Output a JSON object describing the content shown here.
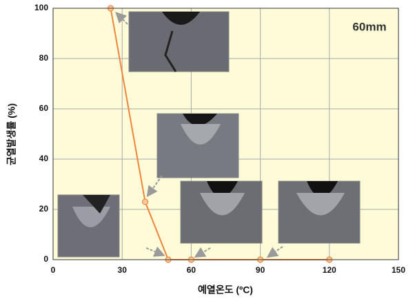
{
  "chart_data": {
    "type": "line",
    "annotation": "60mm",
    "x_label": "예열온도 (ºC)",
    "y_label": "균열발생률 (%)",
    "x": [
      25,
      40,
      50,
      60,
      90,
      120
    ],
    "series": [
      {
        "color": "#f0853a",
        "values": [
          100,
          23,
          0,
          0,
          0,
          0
        ]
      }
    ],
    "xlim": [
      0,
      150
    ],
    "xticks": [
      0,
      30,
      60,
      90,
      120,
      150
    ],
    "ylim": [
      0,
      100
    ],
    "yticks": [
      0,
      20,
      40,
      60,
      80,
      100
    ],
    "grid": true
  }
}
